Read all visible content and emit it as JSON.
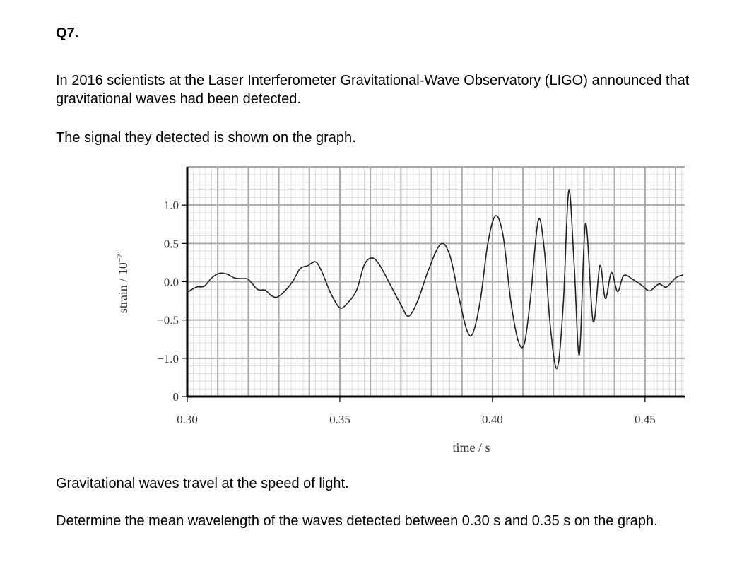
{
  "question": {
    "number": "Q7.",
    "paragraphs": [
      "In 2016 scientists at the Laser Interferometer Gravitational-Wave Observatory (LIGO) announced that gravitational waves had been detected.",
      "The signal they detected is shown on the graph.",
      "Gravitational waves travel at the speed of light.",
      "Determine the mean wavelength of the waves detected between 0.30 s and 0.35 s on the graph."
    ]
  },
  "chart_data": {
    "type": "line",
    "title": "",
    "xlabel": "time / s",
    "ylabel_text": "strain / 10",
    "ylabel_exponent": "−21",
    "xlim": [
      0.3,
      0.463
    ],
    "ylim": [
      -1.5,
      1.5
    ],
    "x_ticks": [
      {
        "value": 0.3,
        "label": "0.30"
      },
      {
        "value": 0.35,
        "label": "0.35"
      },
      {
        "value": 0.4,
        "label": "0.40"
      },
      {
        "value": 0.45,
        "label": "0.45"
      }
    ],
    "y_ticks": [
      {
        "value": 1.0,
        "label": "1.0"
      },
      {
        "value": 0.5,
        "label": "0.5"
      },
      {
        "value": 0.0,
        "label": "0.0"
      },
      {
        "value": -0.5,
        "label": "−0.5"
      },
      {
        "value": -1.0,
        "label": "−1.0"
      }
    ],
    "bottom_axis_label": "0",
    "grid": true,
    "series": [
      {
        "name": "",
        "points": [
          [
            0.3,
            -0.14
          ],
          [
            0.303,
            -0.07
          ],
          [
            0.3055,
            -0.06
          ],
          [
            0.308,
            0.05
          ],
          [
            0.3105,
            0.11
          ],
          [
            0.313,
            0.1
          ],
          [
            0.3155,
            0.05
          ],
          [
            0.318,
            0.04
          ],
          [
            0.32,
            0.03
          ],
          [
            0.323,
            -0.1
          ],
          [
            0.3255,
            -0.11
          ],
          [
            0.3275,
            -0.18
          ],
          [
            0.3295,
            -0.2
          ],
          [
            0.332,
            -0.12
          ],
          [
            0.3345,
            0.0
          ],
          [
            0.337,
            0.17
          ],
          [
            0.3395,
            0.21
          ],
          [
            0.342,
            0.26
          ],
          [
            0.344,
            0.14
          ],
          [
            0.347,
            -0.15
          ],
          [
            0.35,
            -0.34
          ],
          [
            0.3525,
            -0.28
          ],
          [
            0.3555,
            -0.11
          ],
          [
            0.358,
            0.22
          ],
          [
            0.3605,
            0.31
          ],
          [
            0.363,
            0.22
          ],
          [
            0.3665,
            -0.04
          ],
          [
            0.37,
            -0.3
          ],
          [
            0.3725,
            -0.45
          ],
          [
            0.3755,
            -0.25
          ],
          [
            0.379,
            0.15
          ],
          [
            0.383,
            0.49
          ],
          [
            0.386,
            0.35
          ],
          [
            0.389,
            -0.2
          ],
          [
            0.3915,
            -0.62
          ],
          [
            0.3935,
            -0.68
          ],
          [
            0.396,
            -0.25
          ],
          [
            0.3985,
            0.5
          ],
          [
            0.401,
            0.86
          ],
          [
            0.4035,
            0.6
          ],
          [
            0.406,
            -0.25
          ],
          [
            0.4085,
            -0.78
          ],
          [
            0.4105,
            -0.8
          ],
          [
            0.4125,
            -0.2
          ],
          [
            0.415,
            0.8
          ],
          [
            0.417,
            0.42
          ],
          [
            0.419,
            -0.6
          ],
          [
            0.4212,
            -1.13
          ],
          [
            0.4232,
            -0.3
          ],
          [
            0.425,
            1.19
          ],
          [
            0.4268,
            0.2
          ],
          [
            0.4285,
            -0.95
          ],
          [
            0.4305,
            0.76
          ],
          [
            0.433,
            -0.52
          ],
          [
            0.4352,
            0.21
          ],
          [
            0.437,
            -0.22
          ],
          [
            0.439,
            0.12
          ],
          [
            0.441,
            -0.13
          ],
          [
            0.443,
            0.08
          ],
          [
            0.446,
            0.03
          ],
          [
            0.449,
            -0.05
          ],
          [
            0.4515,
            -0.12
          ],
          [
            0.4545,
            -0.03
          ],
          [
            0.457,
            -0.07
          ],
          [
            0.46,
            0.05
          ],
          [
            0.4625,
            0.09
          ]
        ]
      }
    ]
  }
}
